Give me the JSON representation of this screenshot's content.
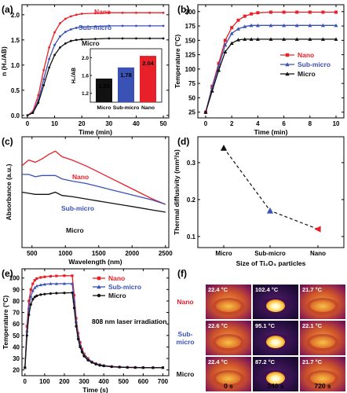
{
  "colors": {
    "nano": "#e8202a",
    "sub": "#3a52b4",
    "micro": "#111111"
  },
  "panel_labels": [
    "(a)",
    "(b)",
    "(c)",
    "(d)",
    "(e)",
    "(f)"
  ],
  "chart_data": [
    {
      "id": "a",
      "type": "line",
      "xlabel": "Time (min)",
      "ylabel": "n (H₂/AB)",
      "xlim": [
        -2,
        52
      ],
      "ylim": [
        -0.05,
        2.2
      ],
      "xticks": [
        0,
        10,
        20,
        30,
        40,
        50
      ],
      "yticks": [
        0.0,
        0.5,
        1.0,
        1.5,
        2.0
      ],
      "ytick_labels": [
        "0.0",
        "0.5",
        "1.0",
        "1.5",
        "2.0"
      ],
      "series": [
        {
          "name": "Nano",
          "key": "nano",
          "marker": "circle",
          "x": [
            0,
            2,
            4,
            6,
            8,
            10,
            12,
            14,
            16,
            18,
            20,
            25,
            30,
            35,
            40,
            45,
            50
          ],
          "y": [
            0,
            0.08,
            0.4,
            0.9,
            1.35,
            1.65,
            1.83,
            1.92,
            1.97,
            2.0,
            2.02,
            2.03,
            2.04,
            2.04,
            2.04,
            2.04,
            2.04
          ]
        },
        {
          "name": "Sub-micro",
          "key": "sub",
          "marker": "circle",
          "x": [
            0,
            2,
            4,
            6,
            8,
            10,
            12,
            14,
            16,
            18,
            20,
            25,
            30,
            35,
            40,
            45,
            50
          ],
          "y": [
            0,
            0.06,
            0.3,
            0.72,
            1.12,
            1.4,
            1.57,
            1.66,
            1.71,
            1.74,
            1.76,
            1.77,
            1.78,
            1.78,
            1.78,
            1.78,
            1.78
          ]
        },
        {
          "name": "Micro",
          "key": "micro",
          "marker": "circle",
          "x": [
            0,
            2,
            4,
            6,
            8,
            10,
            12,
            14,
            16,
            18,
            20,
            25,
            30,
            35,
            40,
            45,
            50
          ],
          "y": [
            0,
            0.05,
            0.25,
            0.6,
            0.95,
            1.2,
            1.35,
            1.43,
            1.48,
            1.5,
            1.51,
            1.52,
            1.53,
            1.53,
            1.53,
            1.53,
            1.53
          ]
        }
      ],
      "inset": {
        "type": "bar",
        "ylabel": "H₂/AB",
        "categories": [
          "Micro",
          "Sub-micro",
          "Nano"
        ],
        "values": [
          1.53,
          1.78,
          2.04
        ],
        "value_labels": [
          "1.53",
          "1.78",
          "2.04"
        ],
        "ylim": [
          1.0,
          2.2
        ],
        "yticks": [
          1.2,
          1.6,
          2.0
        ],
        "ytick_labels": [
          "1.2",
          "1.6",
          "2.0"
        ]
      }
    },
    {
      "id": "b",
      "type": "line",
      "xlabel": "Time (min)",
      "ylabel": "Temperature (°C)",
      "xlim": [
        -0.6,
        10.6
      ],
      "ylim": [
        15,
        212
      ],
      "xticks": [
        0,
        2,
        4,
        6,
        8,
        10
      ],
      "yticks": [
        25,
        50,
        75,
        100,
        125,
        150,
        175,
        200
      ],
      "legend": "center-right",
      "series": [
        {
          "name": "Nano",
          "key": "nano",
          "marker": "square",
          "x": [
            0,
            0.5,
            1,
            1.5,
            2,
            2.5,
            3,
            3.5,
            4,
            5,
            6,
            7,
            8,
            9,
            10
          ],
          "y": [
            25,
            70,
            110,
            150,
            172,
            185,
            192,
            196,
            198,
            199,
            199,
            199,
            199,
            199,
            199
          ]
        },
        {
          "name": "Sub-micro",
          "key": "sub",
          "marker": "triangle-up",
          "x": [
            0,
            0.5,
            1,
            1.5,
            2,
            2.5,
            3,
            3.5,
            4,
            5,
            6,
            7,
            8,
            9,
            10
          ],
          "y": [
            25,
            68,
            105,
            142,
            162,
            170,
            174,
            176,
            176,
            176,
            176,
            176,
            176,
            176,
            176
          ]
        },
        {
          "name": "Micro",
          "key": "micro",
          "marker": "triangle-up",
          "x": [
            0,
            0.5,
            1,
            1.5,
            2,
            2.5,
            3,
            3.5,
            4,
            5,
            6,
            7,
            8,
            9,
            10
          ],
          "y": [
            25,
            62,
            98,
            130,
            145,
            151,
            152,
            152,
            152,
            152,
            152,
            152,
            152,
            152,
            152
          ]
        }
      ]
    },
    {
      "id": "c",
      "type": "line",
      "xlabel": "Wavelength (nm)",
      "ylabel": "Absorbance (a.u.)",
      "xlim": [
        350,
        2550
      ],
      "ylim": [
        0,
        1
      ],
      "xticks": [
        500,
        1000,
        1500,
        2000,
        2500
      ],
      "series": [
        {
          "name": "Nano",
          "key": "nano",
          "x": [
            350,
            450,
            550,
            650,
            750,
            850,
            950,
            1100,
            1300,
            1500,
            1700,
            1900,
            2100,
            2300,
            2500
          ],
          "y": [
            0.74,
            0.79,
            0.77,
            0.8,
            0.84,
            0.87,
            0.82,
            0.79,
            0.74,
            0.68,
            0.62,
            0.56,
            0.5,
            0.44,
            0.39
          ]
        },
        {
          "name": "Sub-micro",
          "key": "sub",
          "x": [
            350,
            450,
            550,
            650,
            750,
            850,
            950,
            1100,
            1300,
            1500,
            1700,
            1900,
            2100,
            2300,
            2500
          ],
          "y": [
            0.66,
            0.66,
            0.64,
            0.65,
            0.65,
            0.65,
            0.62,
            0.6,
            0.58,
            0.55,
            0.52,
            0.49,
            0.46,
            0.43,
            0.39
          ]
        },
        {
          "name": "Micro",
          "key": "micro",
          "x": [
            350,
            450,
            550,
            650,
            750,
            850,
            950,
            1100,
            1300,
            1500,
            1700,
            1900,
            2100,
            2300,
            2500
          ],
          "y": [
            0.5,
            0.49,
            0.48,
            0.48,
            0.48,
            0.5,
            0.47,
            0.46,
            0.44,
            0.42,
            0.4,
            0.38,
            0.36,
            0.34,
            0.32
          ]
        }
      ],
      "annotations": [
        "Nano",
        "Sub-micro",
        "Micro"
      ]
    },
    {
      "id": "d",
      "type": "scatter",
      "xlabel": "Size of Ti₂O₃ particles",
      "ylabel": "Thermal diffusivity (mm²/s)",
      "categories": [
        "Micro",
        "Sub-micro",
        "Nano"
      ],
      "values": [
        0.34,
        0.17,
        0.12
      ],
      "marker_colors": [
        "#111111",
        "#3a52b4",
        "#e8202a"
      ],
      "ylim": [
        0.07,
        0.37
      ],
      "yticks": [
        0.1,
        0.2,
        0.3
      ],
      "ytick_labels": [
        "0.1",
        "0.2",
        "0.3"
      ]
    },
    {
      "id": "e",
      "type": "line",
      "xlabel": "Time (s)",
      "ylabel": "Temperature (°C)",
      "xlim": [
        -15,
        730
      ],
      "ylim": [
        15,
        108
      ],
      "xticks": [
        0,
        100,
        200,
        300,
        400,
        500,
        600,
        700
      ],
      "yticks": [
        20,
        30,
        40,
        50,
        60,
        70,
        80,
        90,
        100
      ],
      "annotation": "808 nm laser irradiation",
      "legend": "top-right",
      "series": [
        {
          "name": "Nano",
          "key": "nano",
          "marker": "square",
          "x": [
            0,
            10,
            20,
            30,
            40,
            50,
            60,
            80,
            100,
            130,
            160,
            200,
            240,
            250,
            260,
            270,
            280,
            290,
            300,
            320,
            340,
            360,
            380,
            400,
            440,
            480,
            520,
            560,
            600,
            650,
            700
          ],
          "y": [
            22,
            58,
            80,
            90,
            95,
            98,
            99.5,
            100.5,
            101,
            101.5,
            101.8,
            102,
            102,
            85,
            65,
            52,
            44,
            38,
            34,
            30,
            27,
            25.5,
            24.5,
            23.8,
            23,
            22.6,
            22.3,
            22.2,
            22.1,
            22,
            22
          ]
        },
        {
          "name": "Sub-micro",
          "key": "sub",
          "marker": "triangle-up",
          "x": [
            0,
            10,
            20,
            30,
            40,
            50,
            60,
            80,
            100,
            130,
            160,
            200,
            240,
            250,
            260,
            270,
            280,
            290,
            300,
            320,
            340,
            360,
            380,
            400,
            440,
            480,
            520,
            560,
            600,
            650,
            700
          ],
          "y": [
            22,
            54,
            74,
            84,
            89,
            91.5,
            93,
            94,
            94.5,
            95,
            95,
            95.1,
            95.1,
            80,
            62,
            50,
            42,
            37,
            33,
            29.5,
            27,
            25.5,
            24.5,
            23.8,
            23,
            22.6,
            22.3,
            22.2,
            22.1,
            22,
            22
          ]
        },
        {
          "name": "Micro",
          "key": "micro",
          "marker": "circle",
          "x": [
            0,
            10,
            20,
            30,
            40,
            50,
            60,
            80,
            100,
            130,
            160,
            200,
            240,
            250,
            260,
            270,
            280,
            290,
            300,
            320,
            340,
            360,
            380,
            400,
            440,
            480,
            520,
            560,
            600,
            650,
            700
          ],
          "y": [
            22,
            50,
            68,
            77,
            81.5,
            83.5,
            84.5,
            85.5,
            86,
            86.5,
            86.8,
            87,
            87.2,
            74,
            58,
            47,
            40,
            35.5,
            32,
            28.5,
            26.5,
            25,
            24,
            23.5,
            22.8,
            22.4,
            22.2,
            22.1,
            22,
            22,
            22
          ]
        }
      ]
    },
    {
      "id": "f",
      "type": "table",
      "row_labels": [
        "Nano",
        "Sub-\nmicro",
        "Micro"
      ],
      "row_label_colors": [
        "#e8202a",
        "#3a52b4",
        "#111111"
      ],
      "col_labels": [
        "0 s",
        "240 s",
        "720 s"
      ],
      "cells": [
        [
          "22.4 °C",
          "102.4 °C",
          "21.7 °C"
        ],
        [
          "22.6 °C",
          "95.1 °C",
          "22.1 °C"
        ],
        [
          "22.4 °C",
          "87.2 °C",
          "21.7 °C"
        ]
      ]
    }
  ]
}
